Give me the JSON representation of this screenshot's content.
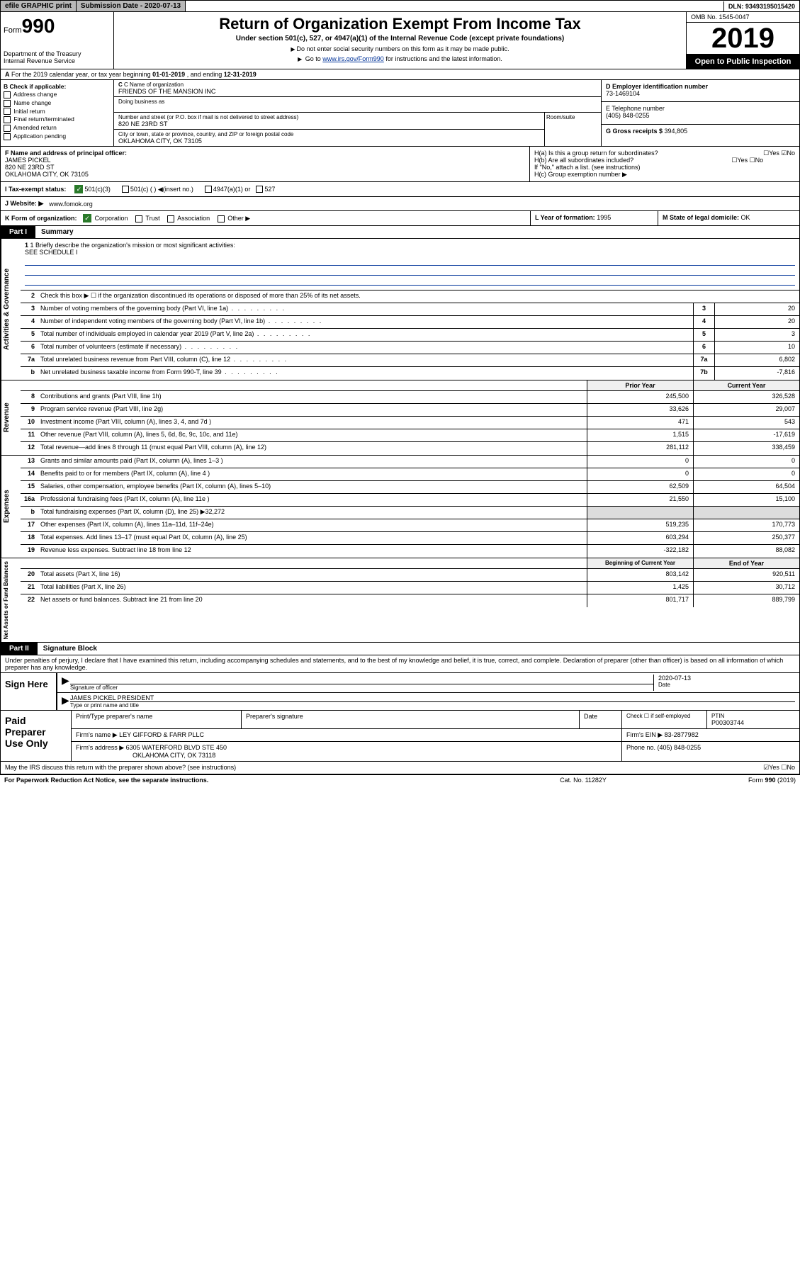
{
  "topbar": {
    "efile": "efile GRAPHIC print",
    "sub_date_label": "Submission Date - 2020-07-13",
    "dln": "DLN: 93493195015420"
  },
  "header": {
    "form_prefix": "Form",
    "form_num": "990",
    "dept": "Department of the Treasury\nInternal Revenue Service",
    "title": "Return of Organization Exempt From Income Tax",
    "subtitle": "Under section 501(c), 527, or 4947(a)(1) of the Internal Revenue Code (except private foundations)",
    "instr1": "Do not enter social security numbers on this form as it may be made public.",
    "instr2_pre": "Go to ",
    "instr2_link": "www.irs.gov/Form990",
    "instr2_post": " for instructions and the latest information.",
    "omb": "OMB No. 1545-0047",
    "year": "2019",
    "inspect": "Open to Public Inspection"
  },
  "rowA": {
    "text_pre": "For the 2019 calendar year, or tax year beginning ",
    "begin": "01-01-2019",
    "mid": " , and ending ",
    "end": "12-31-2019"
  },
  "colB": {
    "hdr": "B Check if applicable:",
    "opts": [
      "Address change",
      "Name change",
      "Initial return",
      "Final return/terminated",
      "Amended return",
      "Application pending"
    ]
  },
  "entity": {
    "c_name_lbl": "C Name of organization",
    "c_name": "FRIENDS OF THE MANSION INC",
    "dba_lbl": "Doing business as",
    "addr_lbl": "Number and street (or P.O. box if mail is not delivered to street address)",
    "addr": "820 NE 23RD ST",
    "room_lbl": "Room/suite",
    "city_lbl": "City or town, state or province, country, and ZIP or foreign postal code",
    "city": "OKLAHOMA CITY, OK  73105",
    "d_lbl": "D Employer identification number",
    "d_val": "73-1469104",
    "e_lbl": "E Telephone number",
    "e_val": "(405) 848-0255",
    "g_lbl": "G Gross receipts $ ",
    "g_val": "394,805"
  },
  "f": {
    "lbl": "F Name and address of principal officer:",
    "name": "JAMES PICKEL",
    "addr1": "820 NE 23RD ST",
    "addr2": "OKLAHOMA CITY, OK  73105"
  },
  "h": {
    "a": "H(a)  Is this a group return for subordinates?",
    "a_yn": "☐Yes ☑No",
    "b": "H(b)  Are all subordinates included?",
    "b_yn": "☐Yes ☐No",
    "b_note": "If \"No,\" attach a list. (see instructions)",
    "c": "H(c)  Group exemption number ▶"
  },
  "i": {
    "lbl": "I  Tax-exempt status:",
    "o1": "501(c)(3)",
    "o2": "501(c) (   ) ◀(insert no.)",
    "o3": "4947(a)(1) or",
    "o4": "527"
  },
  "j": {
    "lbl": "J  Website: ▶",
    "val": "www.fomok.org"
  },
  "k": {
    "lbl": "K Form of organization:",
    "opts": [
      "Corporation",
      "Trust",
      "Association",
      "Other ▶"
    ],
    "l_lbl": "L Year of formation: ",
    "l_val": "1995",
    "m_lbl": "M State of legal domicile: ",
    "m_val": "OK"
  },
  "part1": {
    "tab": "Part I",
    "title": "Summary"
  },
  "summary": {
    "side1": "Activities & Governance",
    "mission_lbl": "1  Briefly describe the organization's mission or most significant activities:",
    "mission_val": "SEE SCHEDULE I",
    "line2": "Check this box ▶ ☐  if the organization discontinued its operations or disposed of more than 25% of its net assets.",
    "rows_ag": [
      {
        "n": "3",
        "d": "Number of voting members of the governing body (Part VI, line 1a)",
        "r": "3",
        "v": "20"
      },
      {
        "n": "4",
        "d": "Number of independent voting members of the governing body (Part VI, line 1b)",
        "r": "4",
        "v": "20"
      },
      {
        "n": "5",
        "d": "Total number of individuals employed in calendar year 2019 (Part V, line 2a)",
        "r": "5",
        "v": "3"
      },
      {
        "n": "6",
        "d": "Total number of volunteers (estimate if necessary)",
        "r": "6",
        "v": "10"
      },
      {
        "n": "7a",
        "d": "Total unrelated business revenue from Part VIII, column (C), line 12",
        "r": "7a",
        "v": "6,802"
      },
      {
        "n": "b",
        "d": "Net unrelated business taxable income from Form 990-T, line 39",
        "r": "7b",
        "v": "-7,816"
      }
    ],
    "py_hdr": "Prior Year",
    "cy_hdr": "Current Year",
    "side2": "Revenue",
    "rows_rev": [
      {
        "n": "8",
        "d": "Contributions and grants (Part VIII, line 1h)",
        "py": "245,500",
        "cy": "326,528"
      },
      {
        "n": "9",
        "d": "Program service revenue (Part VIII, line 2g)",
        "py": "33,626",
        "cy": "29,007"
      },
      {
        "n": "10",
        "d": "Investment income (Part VIII, column (A), lines 3, 4, and 7d )",
        "py": "471",
        "cy": "543"
      },
      {
        "n": "11",
        "d": "Other revenue (Part VIII, column (A), lines 5, 6d, 8c, 9c, 10c, and 11e)",
        "py": "1,515",
        "cy": "-17,619"
      },
      {
        "n": "12",
        "d": "Total revenue—add lines 8 through 11 (must equal Part VIII, column (A), line 12)",
        "py": "281,112",
        "cy": "338,459"
      }
    ],
    "side3": "Expenses",
    "rows_exp": [
      {
        "n": "13",
        "d": "Grants and similar amounts paid (Part IX, column (A), lines 1–3 )",
        "py": "0",
        "cy": "0"
      },
      {
        "n": "14",
        "d": "Benefits paid to or for members (Part IX, column (A), line 4 )",
        "py": "0",
        "cy": "0"
      },
      {
        "n": "15",
        "d": "Salaries, other compensation, employee benefits (Part IX, column (A), lines 5–10)",
        "py": "62,509",
        "cy": "64,504"
      },
      {
        "n": "16a",
        "d": "Professional fundraising fees (Part IX, column (A), line 11e )",
        "py": "21,550",
        "cy": "15,100"
      },
      {
        "n": "b",
        "d": "Total fundraising expenses (Part IX, column (D), line 25) ▶32,272",
        "py": "",
        "cy": "",
        "grey": true
      },
      {
        "n": "17",
        "d": "Other expenses (Part IX, column (A), lines 11a–11d, 11f–24e)",
        "py": "519,235",
        "cy": "170,773"
      },
      {
        "n": "18",
        "d": "Total expenses. Add lines 13–17 (must equal Part IX, column (A), line 25)",
        "py": "603,294",
        "cy": "250,377"
      },
      {
        "n": "19",
        "d": "Revenue less expenses. Subtract line 18 from line 12",
        "py": "-322,182",
        "cy": "88,082"
      }
    ],
    "side4": "Net Assets or Fund Balances",
    "by_hdr": "Beginning of Current Year",
    "ey_hdr": "End of Year",
    "rows_net": [
      {
        "n": "20",
        "d": "Total assets (Part X, line 16)",
        "py": "803,142",
        "cy": "920,511"
      },
      {
        "n": "21",
        "d": "Total liabilities (Part X, line 26)",
        "py": "1,425",
        "cy": "30,712"
      },
      {
        "n": "22",
        "d": "Net assets or fund balances. Subtract line 21 from line 20",
        "py": "801,717",
        "cy": "889,799"
      }
    ]
  },
  "part2": {
    "tab": "Part II",
    "title": "Signature Block"
  },
  "sig": {
    "preamble": "Under penalties of perjury, I declare that I have examined this return, including accompanying schedules and statements, and to the best of my knowledge and belief, it is true, correct, and complete. Declaration of preparer (other than officer) is based on all information of which preparer has any knowledge.",
    "sign_here": "Sign Here",
    "sig_officer_lbl": "Signature of officer",
    "date_val": "2020-07-13",
    "date_lbl": "Date",
    "name_val": "JAMES PICKEL  PRESIDENT",
    "name_lbl": "Type or print name and title"
  },
  "paid": {
    "lbl": "Paid Preparer Use Only",
    "h1": "Print/Type preparer's name",
    "h2": "Preparer's signature",
    "h3": "Date",
    "h4_a": "Check ☐ if self-employed",
    "h5_lbl": "PTIN",
    "h5_val": "P00303744",
    "firm_name_lbl": "Firm's name    ▶",
    "firm_name": "LEY GIFFORD & FARR PLLC",
    "firm_ein_lbl": "Firm's EIN ▶",
    "firm_ein": "83-2877982",
    "firm_addr_lbl": "Firm's address ▶",
    "firm_addr1": "6305 WATERFORD BLVD STE 450",
    "firm_addr2": "OKLAHOMA CITY, OK  73118",
    "phone_lbl": "Phone no. ",
    "phone": "(405) 848-0255"
  },
  "discuss": {
    "q": "May the IRS discuss this return with the preparer shown above? (see instructions)",
    "yn": "☑Yes   ☐No"
  },
  "footer": {
    "l": "For Paperwork Reduction Act Notice, see the separate instructions.",
    "m": "Cat. No. 11282Y",
    "r": "Form 990 (2019)"
  }
}
